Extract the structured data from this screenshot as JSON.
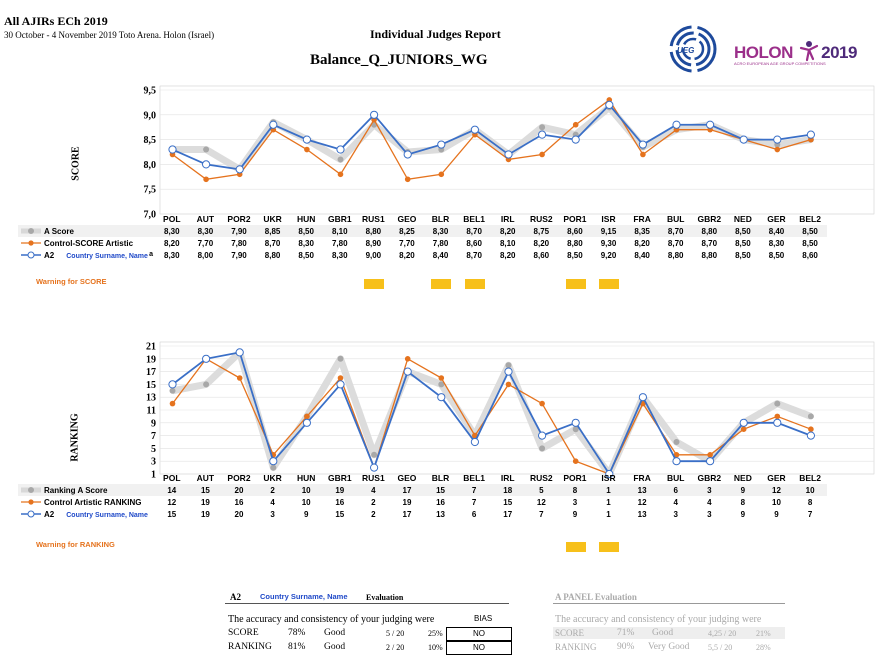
{
  "header": {
    "competition": "All AJIRs ECh 2019",
    "dates_venue": "30 October - 4 November 2019 Toto Arena. Holon (Israel)",
    "report_title": "Individual Judges Report",
    "event": "Balance_Q_JUNIORS_WG",
    "logo_ueg": "UEG",
    "logo_holon_word": "HOLON",
    "logo_holon_year": "2019",
    "logo_holon_caption": "ACRO EUROPEAN AGE GROUP COMPETITIONS"
  },
  "colors": {
    "gray_series": "#c0c0c0",
    "orange_series": "#e5731e",
    "blue_series": "#3a6fc7",
    "warning": "#f7c01a"
  },
  "score_chart": {
    "ylabel": "SCORE",
    "yticks": [
      "9,5",
      "9,0",
      "8,5",
      "8,0",
      "7,5",
      "7,0"
    ],
    "warning_label": "Warning for SCORE",
    "warnings": [
      6,
      8,
      9,
      12,
      13
    ]
  },
  "ranking_chart": {
    "ylabel": "RANKING",
    "yticks": [
      "21",
      "19",
      "17",
      "15",
      "13",
      "11",
      "9",
      "7",
      "5",
      "3",
      "1"
    ],
    "warning_label": "Warning for RANKING",
    "warnings": [
      12,
      13
    ]
  },
  "chart_data": [
    {
      "type": "line",
      "ylabel": "SCORE",
      "ylim": [
        7.0,
        9.5
      ],
      "categories": [
        "POL",
        "AUT",
        "POR2",
        "UKR",
        "HUN",
        "GBR1",
        "RUS1",
        "GEO",
        "BLR",
        "BEL1",
        "IRL",
        "RUS2",
        "POR1",
        "ISR",
        "FRA",
        "BUL",
        "GBR2",
        "NED",
        "GER",
        "BEL2"
      ],
      "series": [
        {
          "name": "A Score",
          "values": [
            "8,30",
            "8,30",
            "7,90",
            "8,85",
            "8,50",
            "8,10",
            "8,80",
            "8,25",
            "8,30",
            "8,70",
            "8,20",
            "8,75",
            "8,60",
            "9,15",
            "8,35",
            "8,70",
            "8,80",
            "8,50",
            "8,40",
            "8,50"
          ]
        },
        {
          "name": "Control-SCORE Artistic",
          "values": [
            "8,20",
            "7,70",
            "7,80",
            "8,70",
            "8,30",
            "7,80",
            "8,90",
            "7,70",
            "7,80",
            "8,60",
            "8,10",
            "8,20",
            "8,80",
            "9,30",
            "8,20",
            "8,70",
            "8,70",
            "8,50",
            "8,30",
            "8,50"
          ]
        },
        {
          "name": "A2",
          "values": [
            "8,30",
            "8,00",
            "7,90",
            "8,80",
            "8,50",
            "8,30",
            "9,00",
            "8,20",
            "8,40",
            "8,70",
            "8,20",
            "8,60",
            "8,50",
            "9,20",
            "8,40",
            "8,80",
            "8,80",
            "8,50",
            "8,50",
            "8,60"
          ]
        }
      ]
    },
    {
      "type": "line",
      "ylabel": "RANKING",
      "ylim": [
        1,
        21
      ],
      "categories": [
        "POL",
        "AUT",
        "POR2",
        "UKR",
        "HUN",
        "GBR1",
        "RUS1",
        "GEO",
        "BLR",
        "BEL1",
        "IRL",
        "RUS2",
        "POR1",
        "ISR",
        "FRA",
        "BUL",
        "GBR2",
        "NED",
        "GER",
        "BEL2"
      ],
      "series": [
        {
          "name": "Ranking A Score",
          "values": [
            "14",
            "15",
            "20",
            "2",
            "10",
            "19",
            "4",
            "17",
            "15",
            "7",
            "18",
            "5",
            "8",
            "1",
            "13",
            "6",
            "3",
            "9",
            "12",
            "10"
          ]
        },
        {
          "name": "Control Artistic RANKING",
          "values": [
            "12",
            "19",
            "16",
            "4",
            "10",
            "16",
            "2",
            "19",
            "16",
            "7",
            "15",
            "12",
            "3",
            "1",
            "12",
            "4",
            "4",
            "8",
            "10",
            "8"
          ]
        },
        {
          "name": "A2",
          "values": [
            "15",
            "19",
            "20",
            "3",
            "9",
            "15",
            "2",
            "17",
            "13",
            "6",
            "17",
            "7",
            "9",
            "1",
            "13",
            "3",
            "3",
            "9",
            "9",
            "7"
          ]
        }
      ]
    }
  ],
  "judge": {
    "id": "A2",
    "name": "Country Surname, Name",
    "suffix": "a"
  },
  "evaluation": {
    "judge_id": "A2",
    "judge_name": "Country Surname, Name",
    "title": "Evaluation",
    "accuracy_text": "The accuracy and consistency of your judging were",
    "bias_header": "BIAS",
    "rows": [
      {
        "label": "SCORE",
        "pct": "78%",
        "grade": "Good",
        "frac": "5 / 20",
        "frac_pct": "25%",
        "bias": "NO"
      },
      {
        "label": "RANKING",
        "pct": "81%",
        "grade": "Good",
        "frac": "2 / 20",
        "frac_pct": "10%",
        "bias": "NO"
      }
    ]
  },
  "panel": {
    "title": "A PANEL Evaluation",
    "accuracy_text": "The accuracy and consistency of your judging were",
    "rows": [
      {
        "label": "SCORE",
        "pct": "71%",
        "grade": "Good",
        "frac": "4,25 / 20",
        "frac_pct": "21%"
      },
      {
        "label": "RANKING",
        "pct": "90%",
        "grade": "Very Good",
        "frac": "5,5 / 20",
        "frac_pct": "28%"
      }
    ]
  }
}
